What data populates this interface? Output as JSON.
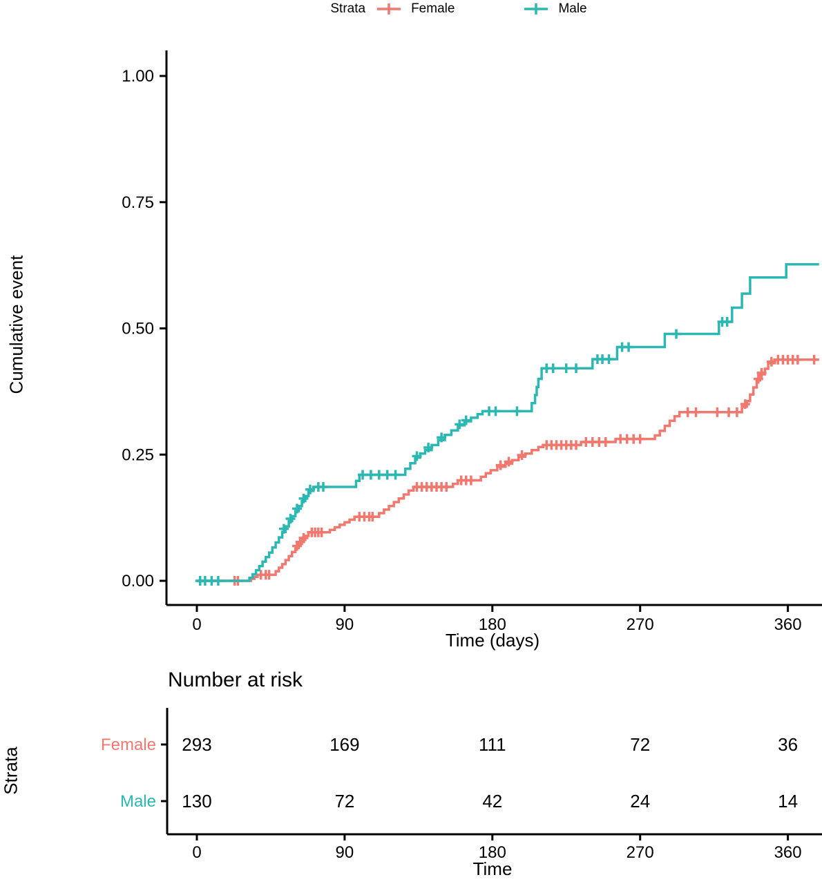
{
  "legend": {
    "title": "Strata",
    "items": [
      {
        "label": "Female",
        "color": "#F0786F"
      },
      {
        "label": "Male",
        "color": "#2CB8B2"
      }
    ]
  },
  "chart_data": {
    "type": "line",
    "subtype": "kaplan-meier-cumulative-event-step-curves-with-censor-marks",
    "title": "",
    "xlabel": "Time (days)",
    "ylabel": "Cumulative event",
    "xlim": [
      0,
      380
    ],
    "ylim": [
      0,
      1.0
    ],
    "grid": false,
    "legend_position": "top",
    "xticks": [
      0,
      90,
      180,
      270,
      360
    ],
    "xtick_labels": [
      "0",
      "90",
      "180",
      "270",
      "360"
    ],
    "yticks": [
      0,
      0.25,
      0.5,
      0.75,
      1.0
    ],
    "ytick_labels": [
      "0.00",
      "0.25",
      "0.50",
      "0.75",
      "1.00"
    ],
    "series": [
      {
        "name": "Female",
        "color": "#F0786F",
        "steps": [
          [
            0,
            0
          ],
          [
            32,
            0
          ],
          [
            33,
            0.004
          ],
          [
            35,
            0.008
          ],
          [
            37,
            0.012
          ],
          [
            46,
            0.012
          ],
          [
            48,
            0.019
          ],
          [
            50,
            0.026
          ],
          [
            52,
            0.033
          ],
          [
            54,
            0.041
          ],
          [
            56,
            0.049
          ],
          [
            58,
            0.057
          ],
          [
            60,
            0.065
          ],
          [
            62,
            0.073
          ],
          [
            64,
            0.081
          ],
          [
            66,
            0.089
          ],
          [
            68,
            0.096
          ],
          [
            79,
            0.096
          ],
          [
            81,
            0.101
          ],
          [
            84,
            0.106
          ],
          [
            87,
            0.111
          ],
          [
            90,
            0.116
          ],
          [
            93,
            0.121
          ],
          [
            96,
            0.127
          ],
          [
            109,
            0.127
          ],
          [
            111,
            0.134
          ],
          [
            114,
            0.141
          ],
          [
            117,
            0.148
          ],
          [
            120,
            0.156
          ],
          [
            123,
            0.163
          ],
          [
            126,
            0.171
          ],
          [
            129,
            0.179
          ],
          [
            132,
            0.186
          ],
          [
            154,
            0.186
          ],
          [
            156,
            0.192
          ],
          [
            159,
            0.199
          ],
          [
            171,
            0.199
          ],
          [
            173,
            0.206
          ],
          [
            176,
            0.213
          ],
          [
            179,
            0.219
          ],
          [
            183,
            0.226
          ],
          [
            188,
            0.232
          ],
          [
            192,
            0.239
          ],
          [
            196,
            0.246
          ],
          [
            200,
            0.252
          ],
          [
            204,
            0.259
          ],
          [
            208,
            0.265
          ],
          [
            211,
            0.269
          ],
          [
            232,
            0.269
          ],
          [
            234,
            0.275
          ],
          [
            253,
            0.275
          ],
          [
            255,
            0.281
          ],
          [
            276,
            0.281
          ],
          [
            279,
            0.288
          ],
          [
            282,
            0.297
          ],
          [
            285,
            0.307
          ],
          [
            288,
            0.317
          ],
          [
            291,
            0.326
          ],
          [
            294,
            0.334
          ],
          [
            330,
            0.334
          ],
          [
            332,
            0.345
          ],
          [
            335,
            0.356
          ],
          [
            337,
            0.369
          ],
          [
            339,
            0.383
          ],
          [
            341,
            0.397
          ],
          [
            343,
            0.409
          ],
          [
            346,
            0.42
          ],
          [
            348,
            0.431
          ],
          [
            352,
            0.438
          ],
          [
            379,
            0.438
          ]
        ],
        "censors": [
          [
            23,
            0
          ],
          [
            25,
            0
          ],
          [
            39,
            0.012
          ],
          [
            42,
            0.012
          ],
          [
            44,
            0.012
          ],
          [
            61,
            0.069
          ],
          [
            63,
            0.077
          ],
          [
            65,
            0.085
          ],
          [
            70,
            0.096
          ],
          [
            72,
            0.096
          ],
          [
            74,
            0.096
          ],
          [
            76,
            0.096
          ],
          [
            99,
            0.127
          ],
          [
            102,
            0.127
          ],
          [
            105,
            0.127
          ],
          [
            107,
            0.127
          ],
          [
            134,
            0.186
          ],
          [
            137,
            0.186
          ],
          [
            140,
            0.186
          ],
          [
            143,
            0.186
          ],
          [
            146,
            0.186
          ],
          [
            149,
            0.186
          ],
          [
            152,
            0.186
          ],
          [
            161,
            0.199
          ],
          [
            164,
            0.199
          ],
          [
            167,
            0.199
          ],
          [
            185,
            0.229
          ],
          [
            190,
            0.236
          ],
          [
            198,
            0.249
          ],
          [
            213,
            0.269
          ],
          [
            216,
            0.269
          ],
          [
            219,
            0.269
          ],
          [
            222,
            0.269
          ],
          [
            225,
            0.269
          ],
          [
            228,
            0.269
          ],
          [
            231,
            0.269
          ],
          [
            237,
            0.275
          ],
          [
            241,
            0.275
          ],
          [
            245,
            0.275
          ],
          [
            249,
            0.275
          ],
          [
            258,
            0.281
          ],
          [
            262,
            0.281
          ],
          [
            266,
            0.281
          ],
          [
            270,
            0.281
          ],
          [
            299,
            0.334
          ],
          [
            304,
            0.334
          ],
          [
            317,
            0.334
          ],
          [
            324,
            0.334
          ],
          [
            329,
            0.334
          ],
          [
            334,
            0.35
          ],
          [
            342,
            0.4
          ],
          [
            344,
            0.412
          ],
          [
            350,
            0.434
          ],
          [
            354,
            0.438
          ],
          [
            357,
            0.438
          ],
          [
            360,
            0.438
          ],
          [
            363,
            0.438
          ],
          [
            366,
            0.438
          ],
          [
            376,
            0.438
          ]
        ]
      },
      {
        "name": "Male",
        "color": "#2CB8B2",
        "steps": [
          [
            0,
            0
          ],
          [
            30,
            0
          ],
          [
            32,
            0.006
          ],
          [
            34,
            0.013
          ],
          [
            36,
            0.021
          ],
          [
            38,
            0.029
          ],
          [
            40,
            0.038
          ],
          [
            42,
            0.047
          ],
          [
            44,
            0.056
          ],
          [
            46,
            0.066
          ],
          [
            48,
            0.076
          ],
          [
            50,
            0.086
          ],
          [
            52,
            0.097
          ],
          [
            54,
            0.108
          ],
          [
            56,
            0.118
          ],
          [
            58,
            0.128
          ],
          [
            60,
            0.138
          ],
          [
            62,
            0.148
          ],
          [
            64,
            0.158
          ],
          [
            66,
            0.168
          ],
          [
            68,
            0.178
          ],
          [
            71,
            0.186
          ],
          [
            95,
            0.186
          ],
          [
            97,
            0.198
          ],
          [
            99,
            0.21
          ],
          [
            124,
            0.21
          ],
          [
            127,
            0.222
          ],
          [
            130,
            0.233
          ],
          [
            133,
            0.244
          ],
          [
            136,
            0.252
          ],
          [
            139,
            0.259
          ],
          [
            143,
            0.269
          ],
          [
            147,
            0.279
          ],
          [
            151,
            0.289
          ],
          [
            155,
            0.298
          ],
          [
            159,
            0.308
          ],
          [
            163,
            0.316
          ],
          [
            167,
            0.323
          ],
          [
            171,
            0.33
          ],
          [
            174,
            0.336
          ],
          [
            202,
            0.336
          ],
          [
            204,
            0.352
          ],
          [
            206,
            0.368
          ],
          [
            207,
            0.384
          ],
          [
            208,
            0.4
          ],
          [
            210,
            0.421
          ],
          [
            239,
            0.421
          ],
          [
            241,
            0.439
          ],
          [
            254,
            0.439
          ],
          [
            256,
            0.463
          ],
          [
            283,
            0.463
          ],
          [
            285,
            0.489
          ],
          [
            316,
            0.489
          ],
          [
            318,
            0.513
          ],
          [
            324,
            0.513
          ],
          [
            326,
            0.541
          ],
          [
            330,
            0.541
          ],
          [
            332,
            0.569
          ],
          [
            335,
            0.569
          ],
          [
            337,
            0.601
          ],
          [
            357,
            0.601
          ],
          [
            359,
            0.627
          ],
          [
            379,
            0.627
          ]
        ],
        "censors": [
          [
            2,
            0
          ],
          [
            5,
            0
          ],
          [
            9,
            0
          ],
          [
            13,
            0
          ],
          [
            53,
            0.103
          ],
          [
            57,
            0.123
          ],
          [
            61,
            0.143
          ],
          [
            65,
            0.163
          ],
          [
            69,
            0.181
          ],
          [
            74,
            0.186
          ],
          [
            77,
            0.186
          ],
          [
            101,
            0.21
          ],
          [
            106,
            0.21
          ],
          [
            111,
            0.21
          ],
          [
            116,
            0.21
          ],
          [
            121,
            0.21
          ],
          [
            134,
            0.247
          ],
          [
            141,
            0.264
          ],
          [
            149,
            0.284
          ],
          [
            160,
            0.31
          ],
          [
            164,
            0.318
          ],
          [
            178,
            0.336
          ],
          [
            182,
            0.336
          ],
          [
            195,
            0.336
          ],
          [
            213,
            0.421
          ],
          [
            217,
            0.421
          ],
          [
            225,
            0.421
          ],
          [
            231,
            0.421
          ],
          [
            244,
            0.439
          ],
          [
            247,
            0.439
          ],
          [
            251,
            0.439
          ],
          [
            259,
            0.463
          ],
          [
            263,
            0.463
          ],
          [
            292,
            0.489
          ],
          [
            320,
            0.513
          ],
          [
            323,
            0.513
          ]
        ]
      }
    ]
  },
  "risk_table": {
    "title": "Number at risk",
    "ylabel": "Strata",
    "xlabel": "Time",
    "xticks": [
      0,
      90,
      180,
      270,
      360
    ],
    "xtick_labels": [
      "0",
      "90",
      "180",
      "270",
      "360"
    ],
    "rows": [
      {
        "label": "Female",
        "color": "#F0786F",
        "values": [
          "293",
          "169",
          "111",
          "72",
          "36"
        ]
      },
      {
        "label": "Male",
        "color": "#2CB8B2",
        "values": [
          "130",
          "72",
          "42",
          "24",
          "14"
        ]
      }
    ]
  }
}
